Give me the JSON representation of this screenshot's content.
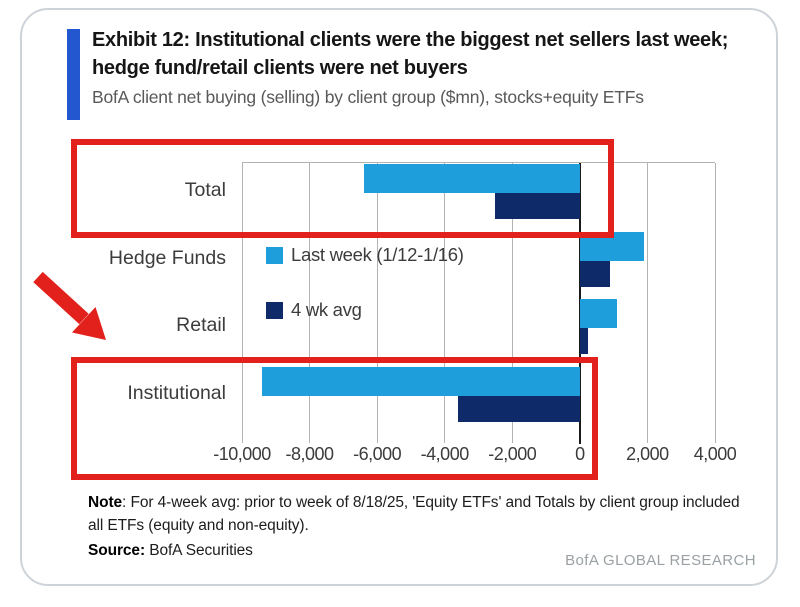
{
  "header": {
    "title_line1": "Exhibit 12: Institutional clients were the biggest net sellers last week;",
    "title_line2": "hedge fund/retail clients were net buyers",
    "subtitle": "BofA client net buying (selling) by client group ($mn), stocks+equity ETFs"
  },
  "chart_data": {
    "type": "bar",
    "orientation": "horizontal",
    "categories": [
      "Total",
      "Hedge Funds",
      "Retail",
      "Institutional"
    ],
    "series": [
      {
        "name": "Last week (1/12-1/16)",
        "color": "#1E9FDC",
        "values": [
          -6400,
          1900,
          1100,
          -9400
        ]
      },
      {
        "name": "4 wk avg",
        "color": "#0F2A68",
        "values": [
          -2500,
          900,
          250,
          -3600
        ]
      }
    ],
    "xlim": [
      -10000,
      4000
    ],
    "xticks": [
      -10000,
      -8000,
      -6000,
      -4000,
      -2000,
      0,
      2000,
      4000
    ],
    "xtick_labels": [
      "-10,000",
      "-8,000",
      "-6,000",
      "-4,000",
      "-2,000",
      "0",
      "2,000",
      "4,000"
    ],
    "unit": "$mn",
    "grid": "vertical-only",
    "legend_position": "inside-left"
  },
  "annotations": {
    "highlight_color": "#E2211C",
    "highlighted_rows": [
      "Total",
      "Institutional"
    ],
    "arrow": "points to Institutional row"
  },
  "footer": {
    "note_label": "Note",
    "note_text": ": For 4-week avg: prior to week of 8/18/25, 'Equity ETFs' and Totals by client group included all ETFs (equity and non-equity).",
    "source_label": "Source:",
    "source_text": " BofA Securities",
    "brand": "BofA GLOBAL RESEARCH"
  },
  "colors": {
    "light_blue": "#1E9FDC",
    "navy": "#0F2A68",
    "accent_blue": "#2257D0",
    "annotation_red": "#E2211C",
    "grid_gray": "#B3B3B3",
    "brand_gray": "#9AA0A4"
  }
}
